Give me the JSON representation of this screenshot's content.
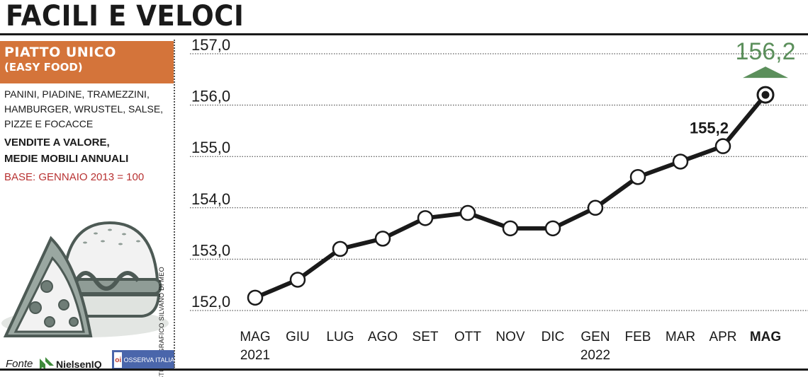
{
  "page": {
    "title": "FACILI E VELOCI"
  },
  "sidebar": {
    "badge_title": "PIATTO UNICO",
    "badge_subtitle": "(EASY FOOD)",
    "description_lines": [
      "PANINI, PIADINE, TRAMEZZINI,",
      "HAMBURGER, WRUSTEL, SALSE,",
      "PIZZE E FOCACCE"
    ],
    "measure_lines": [
      "VENDITE A VALORE,",
      "MEDIE MOBILI ANNUALI"
    ],
    "base": "BASE: GENNAIO 2013 = 100",
    "credit": "STUDIO GRAFICO SILVANO DI MEO",
    "source_label": "Fonte",
    "source_nielsen": "NielsenIQ",
    "source_osserva": "OSSERVA ITALIA",
    "source_osserva_mark": "oi"
  },
  "colors": {
    "badge": "#d4743a",
    "base_text": "#b83232",
    "highlight": "#5b8f5b",
    "line": "#1a1a1a",
    "nielsen_green": "#3e8a3a",
    "osserva_blue": "#4a66ab"
  },
  "chart_data": {
    "type": "line",
    "categories": [
      "MAG",
      "GIU",
      "LUG",
      "AGO",
      "SET",
      "OTT",
      "NOV",
      "DIC",
      "GEN",
      "FEB",
      "MAR",
      "APR",
      "MAG"
    ],
    "year_labels": [
      {
        "text": "2021",
        "index": 0
      },
      {
        "text": "2022",
        "index": 8
      }
    ],
    "values": [
      152.25,
      152.6,
      153.2,
      153.4,
      153.8,
      153.9,
      153.6,
      153.6,
      154.0,
      154.6,
      154.9,
      155.2,
      156.2
    ],
    "ylim": [
      152.0,
      157.0
    ],
    "yticks": [
      "152,0",
      "153,0",
      "154,0",
      "155,0",
      "156,0",
      "157,0"
    ],
    "labeled_points": [
      {
        "index": 11,
        "label": "155,2"
      },
      {
        "index": 12,
        "label": "156,2",
        "highlight": true
      }
    ],
    "bold_category_index": 12,
    "grid": true
  }
}
